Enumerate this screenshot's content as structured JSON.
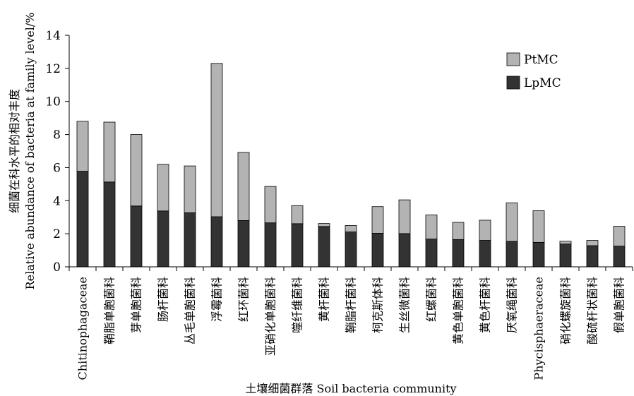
{
  "chart_data": {
    "type": "bar",
    "stacked": true,
    "categories": [
      "Chitinophagaceae",
      "鞘脂单胞菌科",
      "芽单胞菌科",
      "肠杆菌科",
      "丛毛单胞菌科",
      "浮霉菌科",
      "红环菌科",
      "亚硝化单胞菌科",
      "噬纤维菌科",
      "黄杆菌科",
      "鞘脂杆菌科",
      "柯克斯体科",
      "生丝微菌科",
      "红螺菌科",
      "黄色单胞菌科",
      "黄色杆菌科",
      "厌氧绳菌科",
      "Phycisphaeraceae",
      "硝化螺旋菌科",
      "酸硫杆状菌科",
      "假单胞菌科"
    ],
    "series": [
      {
        "name": "LpMC",
        "color": "#333333",
        "values": [
          5.78,
          5.13,
          3.68,
          3.38,
          3.27,
          3.03,
          2.8,
          2.66,
          2.61,
          2.44,
          2.11,
          2.03,
          2.01,
          1.68,
          1.65,
          1.6,
          1.54,
          1.48,
          1.38,
          1.28,
          1.25
        ]
      },
      {
        "name": "PtMC",
        "color": "#b3b3b3",
        "values": [
          3.02,
          3.62,
          4.32,
          2.82,
          2.83,
          9.27,
          4.12,
          2.2,
          1.09,
          0.18,
          0.39,
          1.61,
          2.04,
          1.46,
          1.04,
          1.22,
          2.33,
          1.91,
          0.17,
          0.32,
          1.2
        ]
      }
    ],
    "xlabel": "土壤细菌群落 Soil bacteria community",
    "ylabel": [
      "细菌在科水平的相对丰度",
      "Relative abundance of bacteria at family level/%"
    ],
    "ylim": [
      0,
      14
    ],
    "yticks": [
      0,
      2,
      4,
      6,
      8,
      10,
      12,
      14
    ],
    "legend": {
      "placement": "top-right",
      "entries": [
        {
          "name": "PtMC",
          "color": "#b3b3b3"
        },
        {
          "name": "LpMC",
          "color": "#333333"
        }
      ]
    },
    "grid": false
  }
}
